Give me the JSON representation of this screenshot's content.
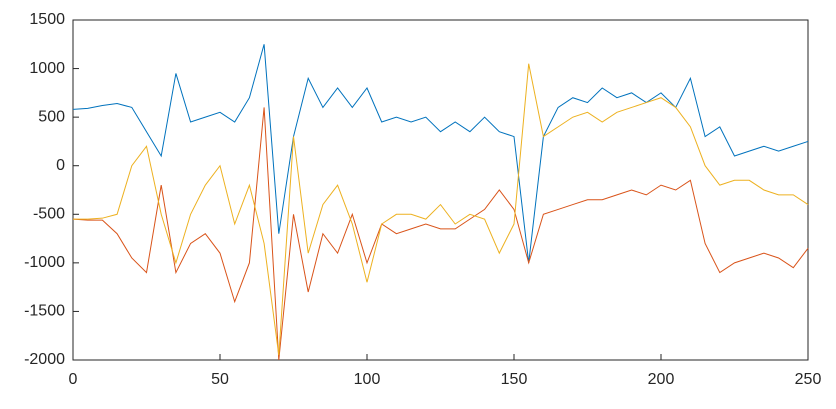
{
  "chart_data": {
    "type": "line",
    "x": [
      0,
      5,
      10,
      15,
      20,
      25,
      30,
      35,
      40,
      45,
      50,
      55,
      60,
      65,
      70,
      75,
      80,
      85,
      90,
      95,
      100,
      105,
      110,
      115,
      120,
      125,
      130,
      135,
      140,
      145,
      150,
      155,
      160,
      165,
      170,
      175,
      180,
      185,
      190,
      195,
      200,
      205,
      210,
      215,
      220,
      225,
      230,
      235,
      240,
      245,
      250
    ],
    "series": [
      {
        "color": "#0072BD",
        "values": [
          580,
          590,
          620,
          640,
          600,
          350,
          100,
          950,
          450,
          500,
          550,
          450,
          700,
          1250,
          -700,
          300,
          900,
          600,
          800,
          600,
          800,
          450,
          500,
          450,
          500,
          350,
          450,
          350,
          500,
          350,
          300,
          -1000,
          300,
          600,
          700,
          650,
          800,
          700,
          750,
          650,
          750,
          600,
          900,
          300,
          400,
          100,
          150,
          200,
          150,
          200,
          250
        ]
      },
      {
        "color": "#D95319",
        "values": [
          -550,
          -560,
          -560,
          -700,
          -950,
          -1100,
          -200,
          -1100,
          -800,
          -700,
          -900,
          -1400,
          -1000,
          600,
          -2000,
          -500,
          -1300,
          -700,
          -900,
          -500,
          -1000,
          -600,
          -700,
          -650,
          -600,
          -650,
          -650,
          -550,
          -450,
          -250,
          -450,
          -1000,
          -500,
          -450,
          -400,
          -350,
          -350,
          -300,
          -250,
          -300,
          -200,
          -250,
          -150,
          -800,
          -1100,
          -1000,
          -950,
          -900,
          -950,
          -1050,
          -850
        ]
      },
      {
        "color": "#EDB120",
        "values": [
          -550,
          -550,
          -540,
          -500,
          0,
          200,
          -500,
          -1000,
          -500,
          -200,
          0,
          -600,
          -200,
          -800,
          -1950,
          300,
          -900,
          -400,
          -200,
          -600,
          -1200,
          -600,
          -500,
          -500,
          -550,
          -400,
          -600,
          -500,
          -550,
          -900,
          -600,
          1050,
          300,
          400,
          500,
          550,
          450,
          550,
          600,
          650,
          700,
          600,
          400,
          0,
          -200,
          -150,
          -150,
          -250,
          -300,
          -300,
          -400
        ]
      }
    ],
    "xlim": [
      0,
      250
    ],
    "xticks": [
      0,
      50,
      100,
      150,
      200,
      250
    ],
    "ylim": [
      -2000,
      1500
    ],
    "yticks": [
      -2000,
      -1500,
      -1000,
      -500,
      0,
      500,
      1000,
      1500
    ]
  }
}
